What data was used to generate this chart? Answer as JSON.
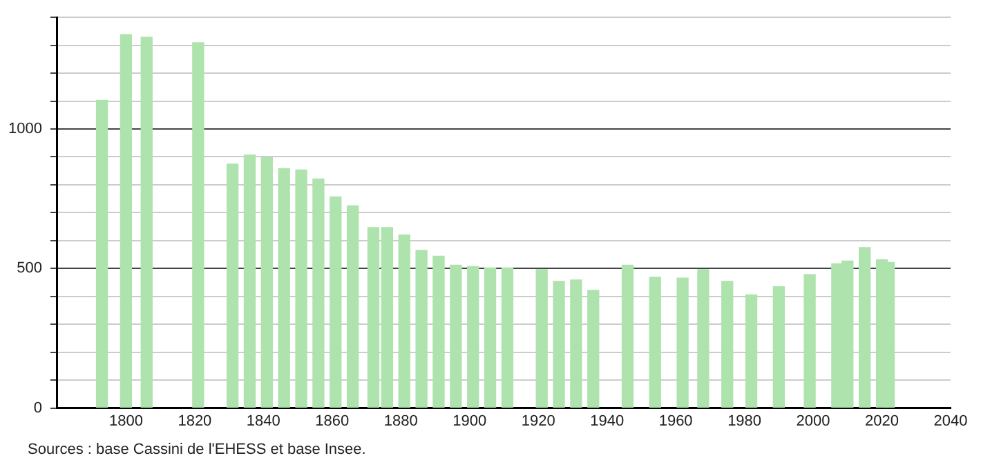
{
  "chart_data": {
    "type": "bar",
    "x": [
      1793,
      1800,
      1806,
      1821,
      1831,
      1836,
      1841,
      1846,
      1851,
      1856,
      1861,
      1866,
      1872,
      1876,
      1881,
      1886,
      1891,
      1896,
      1901,
      1906,
      1911,
      1921,
      1926,
      1931,
      1936,
      1946,
      1954,
      1962,
      1968,
      1975,
      1982,
      1990,
      1999,
      2007,
      2010,
      2015,
      2020,
      2022
    ],
    "values": [
      1103,
      1338,
      1329,
      1309,
      874,
      907,
      897,
      858,
      853,
      821,
      757,
      725,
      647,
      647,
      620,
      565,
      544,
      512,
      507,
      502,
      502,
      496,
      454,
      459,
      422,
      512,
      469,
      466,
      496,
      454,
      406,
      435,
      478,
      517,
      527,
      575,
      531,
      522
    ],
    "color": "#aee3ae",
    "xlim": [
      1780,
      2040
    ],
    "xticks": [
      1800,
      1820,
      1840,
      1860,
      1880,
      1900,
      1920,
      1940,
      1960,
      1980,
      2000,
      2020,
      2040
    ],
    "ylim": [
      0,
      1400
    ],
    "yticks": [
      0,
      {
        "value": 100,
        "label": null
      },
      {
        "value": 200,
        "label": null
      },
      {
        "value": 300,
        "label": null
      },
      {
        "value": 400,
        "label": null
      },
      500,
      {
        "value": 600,
        "label": null
      },
      {
        "value": 700,
        "label": null
      },
      {
        "value": 800,
        "label": null
      },
      {
        "value": 900,
        "label": null
      },
      1000,
      {
        "value": 1100,
        "label": null
      },
      {
        "value": 1200,
        "label": null
      },
      {
        "value": 1300,
        "label": null
      },
      {
        "value": 1400,
        "label": null
      }
    ],
    "grid": "y",
    "legend": false,
    "annotations": [
      "Sources : base Cassini de l'EHESS et base Insee."
    ]
  }
}
